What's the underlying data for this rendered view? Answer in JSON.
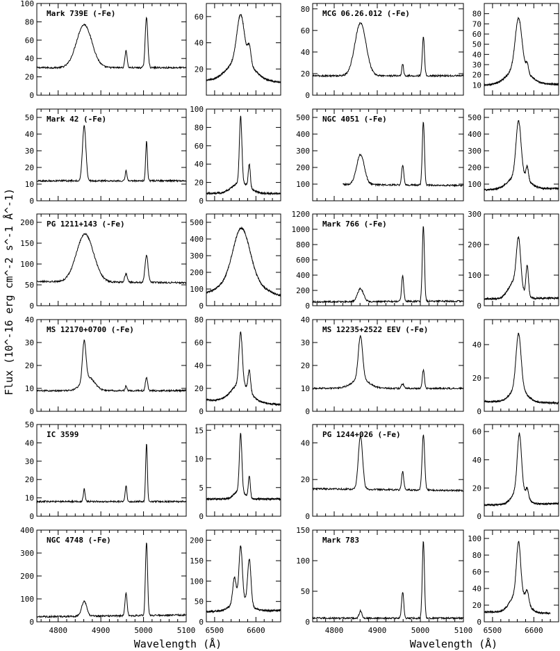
{
  "figure": {
    "ylabel": "Flux (10^-16 erg cm^-2 s^-1 Å^-1)",
    "xlabel": "Wavelength (Å)"
  },
  "chart_data": {
    "type": "line",
    "xlabel": "Wavelength (Å)",
    "ylabel": "Flux (10^-16 erg cm^-2 s^-1 Å^-1)",
    "hbeta_xlim": [
      4750,
      5100
    ],
    "hbeta_xticks": [
      4800,
      4900,
      5000,
      5100
    ],
    "halpha_xlim": [
      6480,
      6660
    ],
    "halpha_xticks": [
      6500,
      6600
    ],
    "objects": [
      {
        "name": "Mark 739E (-Fe)",
        "hbeta": {
          "ylim": [
            0,
            100
          ],
          "yticks": [
            0,
            20,
            40,
            60,
            80,
            100
          ],
          "cont": [
            30,
            30
          ],
          "xstart": 4750,
          "lines": [
            {
              "c": 4861,
              "h": 47,
              "w": 18
            },
            {
              "c": 4959,
              "h": 19,
              "w": 2.5
            },
            {
              "c": 5007,
              "h": 55,
              "w": 3
            }
          ]
        },
        "halpha": {
          "ylim": [
            0,
            70
          ],
          "yticks": [
            20,
            40,
            60
          ],
          "cont": [
            11,
            10
          ],
          "xend": 6660,
          "lines": [
            {
              "c": 6563,
              "h": 34,
              "w": 9
            },
            {
              "c": 6563,
              "h": 17,
              "w": 30
            },
            {
              "c": 6584,
              "h": 13,
              "w": 4
            }
          ]
        }
      },
      {
        "name": "MCG 06.26.012 (-Fe)",
        "hbeta": {
          "ylim": [
            0,
            85
          ],
          "yticks": [
            0,
            20,
            40,
            60,
            80
          ],
          "cont": [
            18,
            18
          ],
          "xstart": 4750,
          "lines": [
            {
              "c": 4861,
              "h": 49,
              "w": 13
            },
            {
              "c": 4959,
              "h": 11,
              "w": 2
            },
            {
              "c": 5007,
              "h": 36,
              "w": 2.5
            }
          ]
        },
        "halpha": {
          "ylim": [
            0,
            90
          ],
          "yticks": [
            10,
            20,
            30,
            40,
            50,
            60,
            70,
            80
          ],
          "cont": [
            10,
            11
          ],
          "xend": 6660,
          "lines": [
            {
              "c": 6563,
              "h": 48,
              "w": 8
            },
            {
              "c": 6563,
              "h": 17,
              "w": 25
            },
            {
              "c": 6584,
              "h": 8,
              "w": 3
            }
          ]
        }
      },
      {
        "name": "Mark 42 (-Fe)",
        "hbeta": {
          "ylim": [
            0,
            55
          ],
          "yticks": [
            0,
            10,
            20,
            30,
            40,
            50
          ],
          "cont": [
            12,
            12
          ],
          "xstart": 4750,
          "lines": [
            {
              "c": 4861,
              "h": 33,
              "w": 4
            },
            {
              "c": 4959,
              "h": 6,
              "w": 2
            },
            {
              "c": 5007,
              "h": 24,
              "w": 2
            }
          ]
        },
        "halpha": {
          "ylim": [
            0,
            100
          ],
          "yticks": [
            0,
            20,
            40,
            60,
            80,
            100
          ],
          "cont": [
            8,
            8
          ],
          "xend": 6660,
          "lines": [
            {
              "c": 6563,
              "h": 72,
              "w": 3
            },
            {
              "c": 6563,
              "h": 12,
              "w": 20
            },
            {
              "c": 6584,
              "h": 25,
              "w": 2.5
            }
          ]
        }
      },
      {
        "name": "NGC 4051 (-Fe)",
        "hbeta": {
          "ylim": [
            0,
            550
          ],
          "yticks": [
            100,
            200,
            300,
            400,
            500
          ],
          "cont": [
            100,
            92
          ],
          "xstart": 4820,
          "lines": [
            {
              "c": 4861,
              "h": 180,
              "w": 9
            },
            {
              "c": 4959,
              "h": 120,
              "w": 2.5
            },
            {
              "c": 5007,
              "h": 380,
              "w": 2.5
            }
          ]
        },
        "halpha": {
          "ylim": [
            0,
            550
          ],
          "yticks": [
            100,
            200,
            300,
            400,
            500
          ],
          "cont": [
            65,
            75
          ],
          "xend": 6660,
          "lines": [
            {
              "c": 6563,
              "h": 320,
              "w": 6
            },
            {
              "c": 6563,
              "h": 90,
              "w": 22
            },
            {
              "c": 6584,
              "h": 80,
              "w": 3
            }
          ]
        }
      },
      {
        "name": "PG 1211+143 (-Fe)",
        "hbeta": {
          "ylim": [
            0,
            220
          ],
          "yticks": [
            0,
            50,
            100,
            150,
            200
          ],
          "cont": [
            58,
            55
          ],
          "xstart": 4750,
          "lines": [
            {
              "c": 4863,
              "h": 115,
              "w": 20
            },
            {
              "c": 4959,
              "h": 20,
              "w": 3
            },
            {
              "c": 5007,
              "h": 65,
              "w": 3.5
            }
          ]
        },
        "halpha": {
          "ylim": [
            0,
            550
          ],
          "yticks": [
            0,
            100,
            200,
            300,
            400,
            500
          ],
          "cont": [
            60,
            50
          ],
          "xend": 6660,
          "lines": [
            {
              "c": 6565,
              "h": 300,
              "w": 20
            },
            {
              "c": 6565,
              "h": 110,
              "w": 45
            }
          ]
        }
      },
      {
        "name": "Mark 766 (-Fe)",
        "hbeta": {
          "ylim": [
            0,
            1200
          ],
          "yticks": [
            0,
            200,
            400,
            600,
            800,
            1000,
            1200
          ],
          "cont": [
            50,
            60
          ],
          "xstart": 4750,
          "lines": [
            {
              "c": 4861,
              "h": 170,
              "w": 7
            },
            {
              "c": 4959,
              "h": 330,
              "w": 2.5
            },
            {
              "c": 5007,
              "h": 980,
              "w": 2.5
            }
          ]
        },
        "halpha": {
          "ylim": [
            0,
            300
          ],
          "yticks": [
            0,
            100,
            200,
            300
          ],
          "cont": [
            22,
            25
          ],
          "xend": 6660,
          "lines": [
            {
              "c": 6563,
              "h": 150,
              "w": 5
            },
            {
              "c": 6555,
              "h": 60,
              "w": 15
            },
            {
              "c": 6584,
              "h": 100,
              "w": 3
            }
          ]
        }
      },
      {
        "name": "MS 12170+0700 (-Fe)",
        "hbeta": {
          "ylim": [
            0,
            40
          ],
          "yticks": [
            0,
            10,
            20,
            30,
            40
          ],
          "cont": [
            9,
            9
          ],
          "xstart": 4750,
          "lines": [
            {
              "c": 4861,
              "h": 17,
              "w": 4
            },
            {
              "c": 4870,
              "h": 6,
              "w": 15
            },
            {
              "c": 4959,
              "h": 2,
              "w": 2
            },
            {
              "c": 5007,
              "h": 6,
              "w": 2.5
            }
          ]
        },
        "halpha": {
          "ylim": [
            0,
            80
          ],
          "yticks": [
            0,
            20,
            40,
            60,
            80
          ],
          "cont": [
            10,
            6
          ],
          "xend": 6660,
          "lines": [
            {
              "c": 6563,
              "h": 45,
              "w": 4
            },
            {
              "c": 6563,
              "h": 16,
              "w": 22
            },
            {
              "c": 6584,
              "h": 18,
              "w": 3
            }
          ]
        }
      },
      {
        "name": "MS 12235+2522 EEV (-Fe)",
        "hbeta": {
          "ylim": [
            0,
            40
          ],
          "yticks": [
            0,
            10,
            20,
            30,
            40
          ],
          "cont": [
            10,
            10
          ],
          "xstart": 4750,
          "lines": [
            {
              "c": 4861,
              "h": 19,
              "w": 5
            },
            {
              "c": 4861,
              "h": 4,
              "w": 20
            },
            {
              "c": 4959,
              "h": 2,
              "w": 3
            },
            {
              "c": 5007,
              "h": 8,
              "w": 2.5
            }
          ]
        },
        "halpha": {
          "ylim": [
            0,
            55
          ],
          "yticks": [
            0,
            20,
            40
          ],
          "cont": [
            6,
            5
          ],
          "xend": 6660,
          "lines": [
            {
              "c": 6563,
              "h": 32,
              "w": 6
            },
            {
              "c": 6563,
              "h": 9,
              "w": 18
            }
          ]
        }
      },
      {
        "name": "IC 3599",
        "hbeta": {
          "ylim": [
            0,
            50
          ],
          "yticks": [
            0,
            10,
            20,
            30,
            40,
            50
          ],
          "cont": [
            8,
            8
          ],
          "xstart": 4750,
          "lines": [
            {
              "c": 4861,
              "h": 7,
              "w": 2
            },
            {
              "c": 4959,
              "h": 9,
              "w": 2
            },
            {
              "c": 5007,
              "h": 32,
              "w": 2
            }
          ]
        },
        "halpha": {
          "ylim": [
            0,
            16
          ],
          "yticks": [
            0,
            5,
            10,
            15
          ],
          "cont": [
            3,
            3
          ],
          "xend": 6660,
          "lines": [
            {
              "c": 6563,
              "h": 10,
              "w": 3
            },
            {
              "c": 6560,
              "h": 1.5,
              "w": 12
            },
            {
              "c": 6584,
              "h": 3.8,
              "w": 2.5
            }
          ]
        }
      },
      {
        "name": "PG 1244+026 (-Fe)",
        "hbeta": {
          "ylim": [
            0,
            50
          ],
          "yticks": [
            0,
            20,
            40
          ],
          "cont": [
            15,
            14
          ],
          "xstart": 4750,
          "lines": [
            {
              "c": 4861,
              "h": 29,
              "w": 5
            },
            {
              "c": 4959,
              "h": 10,
              "w": 2.5
            },
            {
              "c": 5007,
              "h": 30,
              "w": 3
            }
          ]
        },
        "halpha": {
          "ylim": [
            0,
            65
          ],
          "yticks": [
            0,
            20,
            40,
            60
          ],
          "cont": [
            8,
            9
          ],
          "xend": 6660,
          "lines": [
            {
              "c": 6565,
              "h": 38,
              "w": 5
            },
            {
              "c": 6565,
              "h": 12,
              "w": 15
            },
            {
              "c": 6584,
              "h": 6,
              "w": 3
            }
          ]
        }
      },
      {
        "name": "NGC 4748 (-Fe)",
        "hbeta": {
          "ylim": [
            0,
            400
          ],
          "yticks": [
            0,
            100,
            200,
            300,
            400
          ],
          "cont": [
            22,
            30
          ],
          "xstart": 4750,
          "lines": [
            {
              "c": 4861,
              "h": 65,
              "w": 6
            },
            {
              "c": 4959,
              "h": 100,
              "w": 2.5
            },
            {
              "c": 5007,
              "h": 320,
              "w": 2.5
            }
          ]
        },
        "halpha": {
          "ylim": [
            0,
            225
          ],
          "yticks": [
            0,
            50,
            100,
            150,
            200
          ],
          "cont": [
            25,
            28
          ],
          "xend": 6660,
          "lines": [
            {
              "c": 6563,
              "h": 130,
              "w": 4
            },
            {
              "c": 6548,
              "h": 60,
              "w": 4
            },
            {
              "c": 6584,
              "h": 110,
              "w": 4
            },
            {
              "c": 6563,
              "h": 30,
              "w": 20
            }
          ]
        }
      },
      {
        "name": "Mark 783",
        "hbeta": {
          "ylim": [
            0,
            150
          ],
          "yticks": [
            0,
            50,
            100,
            150
          ],
          "cont": [
            6,
            6
          ],
          "xstart": 4750,
          "lines": [
            {
              "c": 4861,
              "h": 12,
              "w": 3
            },
            {
              "c": 4959,
              "h": 43,
              "w": 2.5
            },
            {
              "c": 5007,
              "h": 126,
              "w": 2.5
            }
          ]
        },
        "halpha": {
          "ylim": [
            0,
            110
          ],
          "yticks": [
            0,
            20,
            40,
            60,
            80,
            100
          ],
          "cont": [
            12,
            10
          ],
          "xend": 6640,
          "lines": [
            {
              "c": 6563,
              "h": 60,
              "w": 5
            },
            {
              "c": 6563,
              "h": 25,
              "w": 18
            },
            {
              "c": 6584,
              "h": 14,
              "w": 4
            }
          ]
        }
      }
    ]
  }
}
